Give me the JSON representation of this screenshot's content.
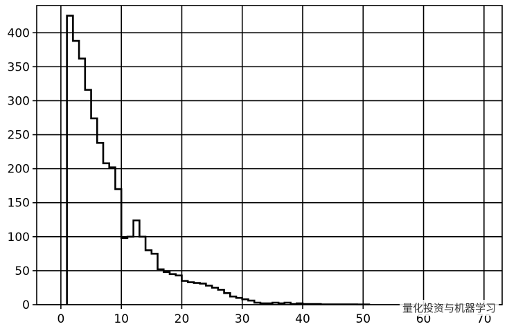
{
  "chart_data": {
    "type": "histogram",
    "title": "",
    "xlabel": "",
    "ylabel": "",
    "xlim": [
      -4,
      73
    ],
    "ylim": [
      0,
      440
    ],
    "xticks": [
      0,
      10,
      20,
      30,
      40,
      50,
      60,
      70
    ],
    "yticks": [
      0,
      50,
      100,
      150,
      200,
      250,
      300,
      350,
      400
    ],
    "grid": true,
    "bin_width": 1.0,
    "bin_start": 1,
    "counts": [
      425,
      388,
      362,
      316,
      274,
      238,
      208,
      202,
      170,
      98,
      100,
      124,
      100,
      80,
      75,
      52,
      48,
      45,
      43,
      35,
      33,
      32,
      31,
      28,
      25,
      22,
      17,
      12,
      10,
      8,
      6,
      3,
      2,
      2,
      3,
      2,
      3,
      1,
      2,
      1,
      1,
      1,
      0.5,
      0.5,
      0.5,
      0.5,
      0.5,
      0.5,
      0.3,
      0.3
    ]
  },
  "colors": {
    "line": "#000000",
    "grid": "#000000",
    "background": "#ffffff"
  },
  "watermark": "量化投资与机器学习"
}
